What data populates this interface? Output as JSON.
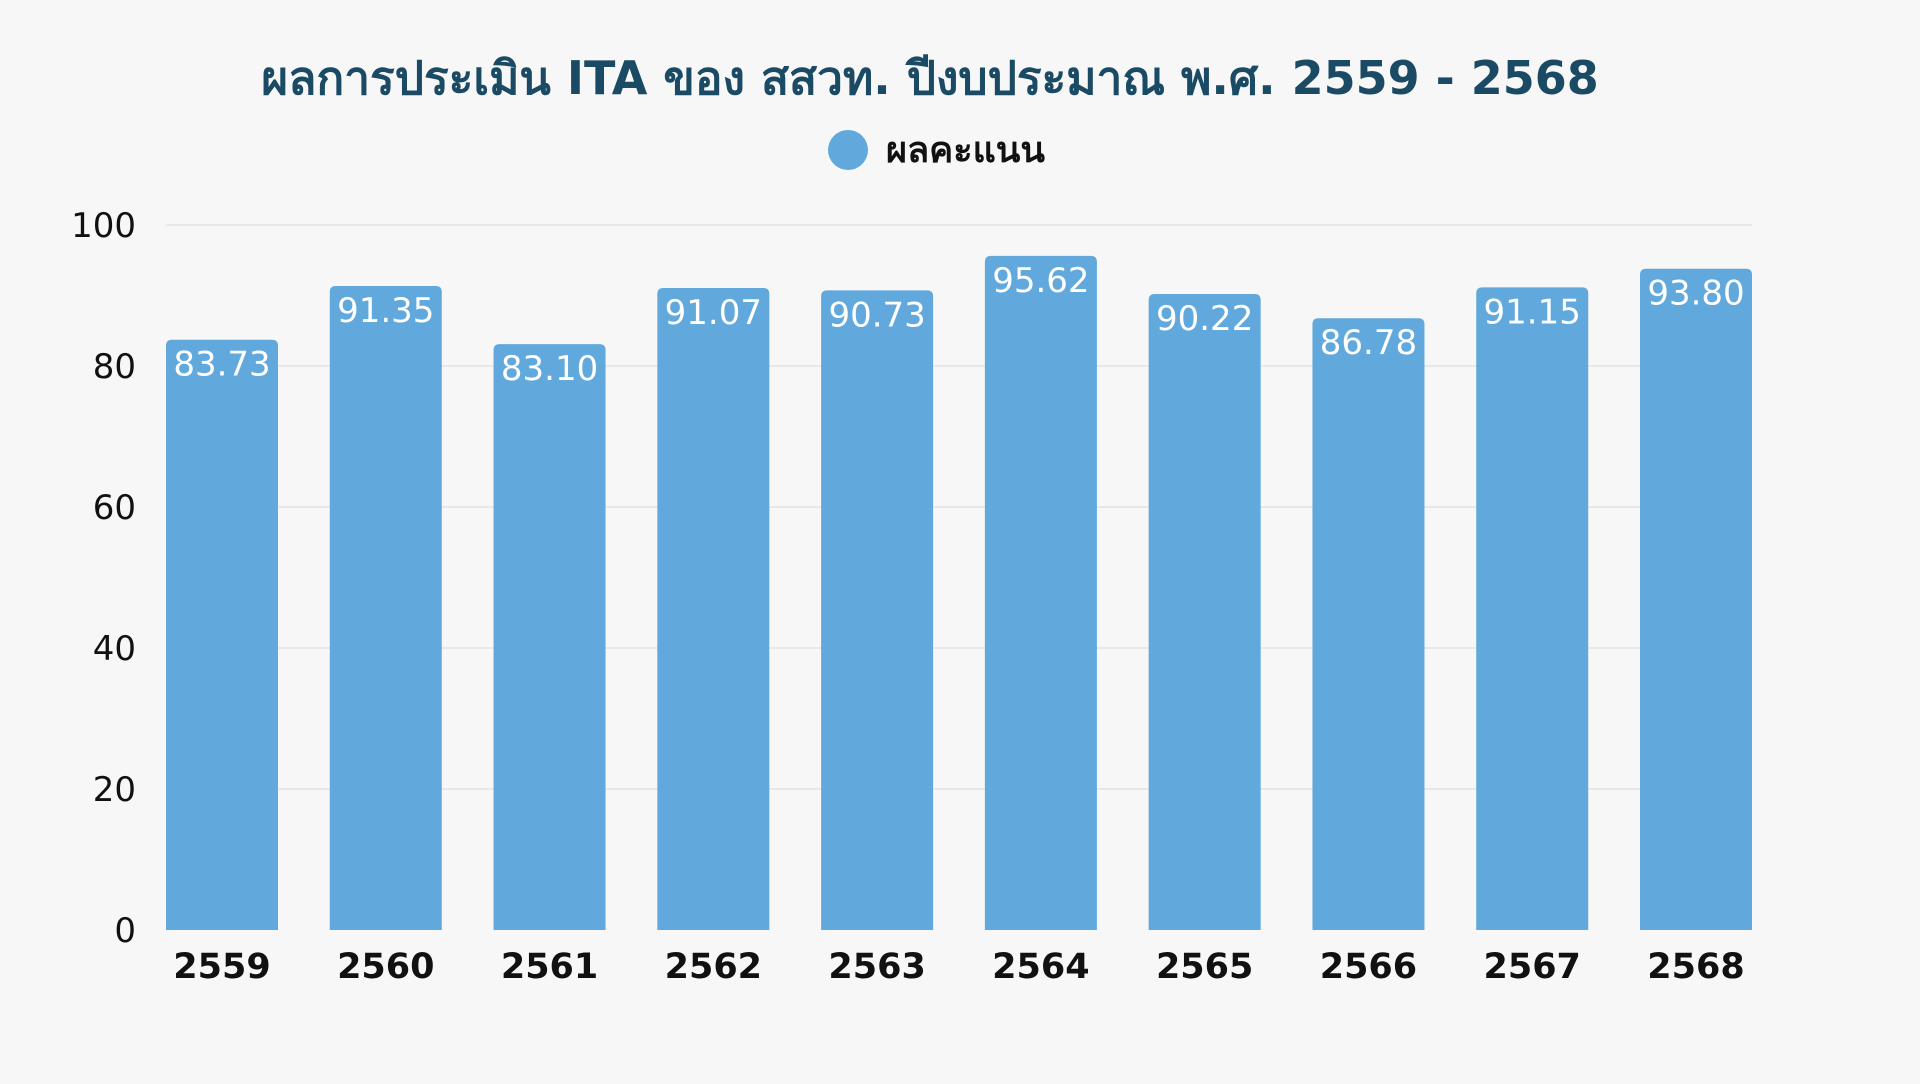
{
  "chart_data": {
    "type": "bar",
    "title": "ผลการประเมิน ITA ของ สสวท. ปีงบประมาณ พ.ศ. 2559 - 2568",
    "categories": [
      "2559",
      "2560",
      "2561",
      "2562",
      "2563",
      "2564",
      "2565",
      "2566",
      "2567",
      "2568"
    ],
    "series": [
      {
        "name": "ผลคะแนน",
        "values": [
          83.73,
          91.35,
          83.1,
          91.07,
          90.73,
          95.62,
          90.22,
          86.78,
          91.15,
          93.8
        ],
        "labels": [
          "83.73",
          "91.35",
          "83.10",
          "91.07",
          "90.73",
          "95.62",
          "90.22",
          "86.78",
          "91.15",
          "93.80"
        ],
        "color": "#61a9dd"
      }
    ],
    "yticks": [
      "0",
      "20",
      "40",
      "60",
      "80",
      "100"
    ],
    "ylim": [
      0,
      100
    ],
    "grid": true,
    "legend": "top-center",
    "xlabel": "",
    "ylabel": ""
  },
  "colors": {
    "title": "#1b4a64",
    "bar": "#61a9dd",
    "background": "#f7f7f7"
  }
}
